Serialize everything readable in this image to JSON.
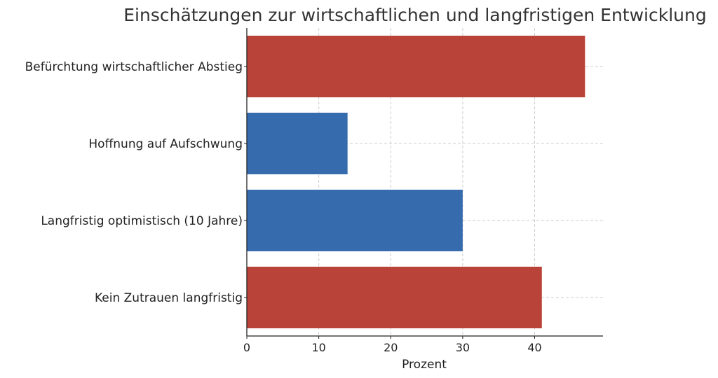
{
  "chart_data": {
    "type": "bar",
    "orientation": "horizontal",
    "title": "Einschätzungen zur wirtschaftlichen und langfristigen Entwicklung",
    "xlabel": "Prozent",
    "ylabel": "",
    "categories": [
      "Befürchtung wirtschaftlicher Abstieg",
      "Hoffnung auf Aufschwung",
      "Langfristig optimistisch (10 Jahre)",
      "Kein Zutrauen langfristig"
    ],
    "values": [
      47,
      14,
      30,
      41
    ],
    "bar_colors": [
      "#b94239",
      "#366bad",
      "#366bad",
      "#b94239"
    ],
    "xlim": [
      0,
      49.5
    ],
    "xticks": [
      "0",
      "10",
      "20",
      "30",
      "40"
    ],
    "grid": true
  }
}
